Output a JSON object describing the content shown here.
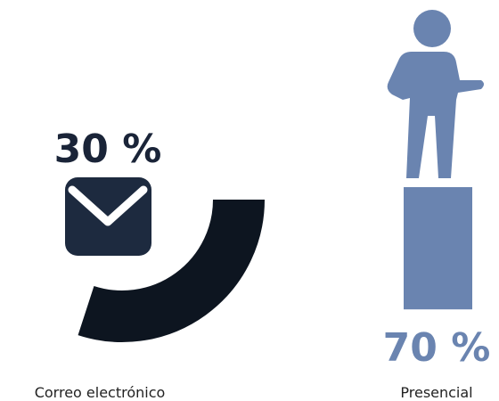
{
  "chart_data": {
    "type": "pie",
    "categories": [
      "Correo electrónico",
      "Presencial"
    ],
    "values": [
      30,
      70
    ],
    "value_labels": [
      "30 %",
      "70 %"
    ],
    "title": ""
  },
  "icons": [
    "envelope-icon",
    "person-icon"
  ],
  "colors": {
    "email_arc": "#0d1520",
    "email_icon": "#1d2a3f",
    "email_text": "#1a2438",
    "presencial": "#6a84b0"
  }
}
